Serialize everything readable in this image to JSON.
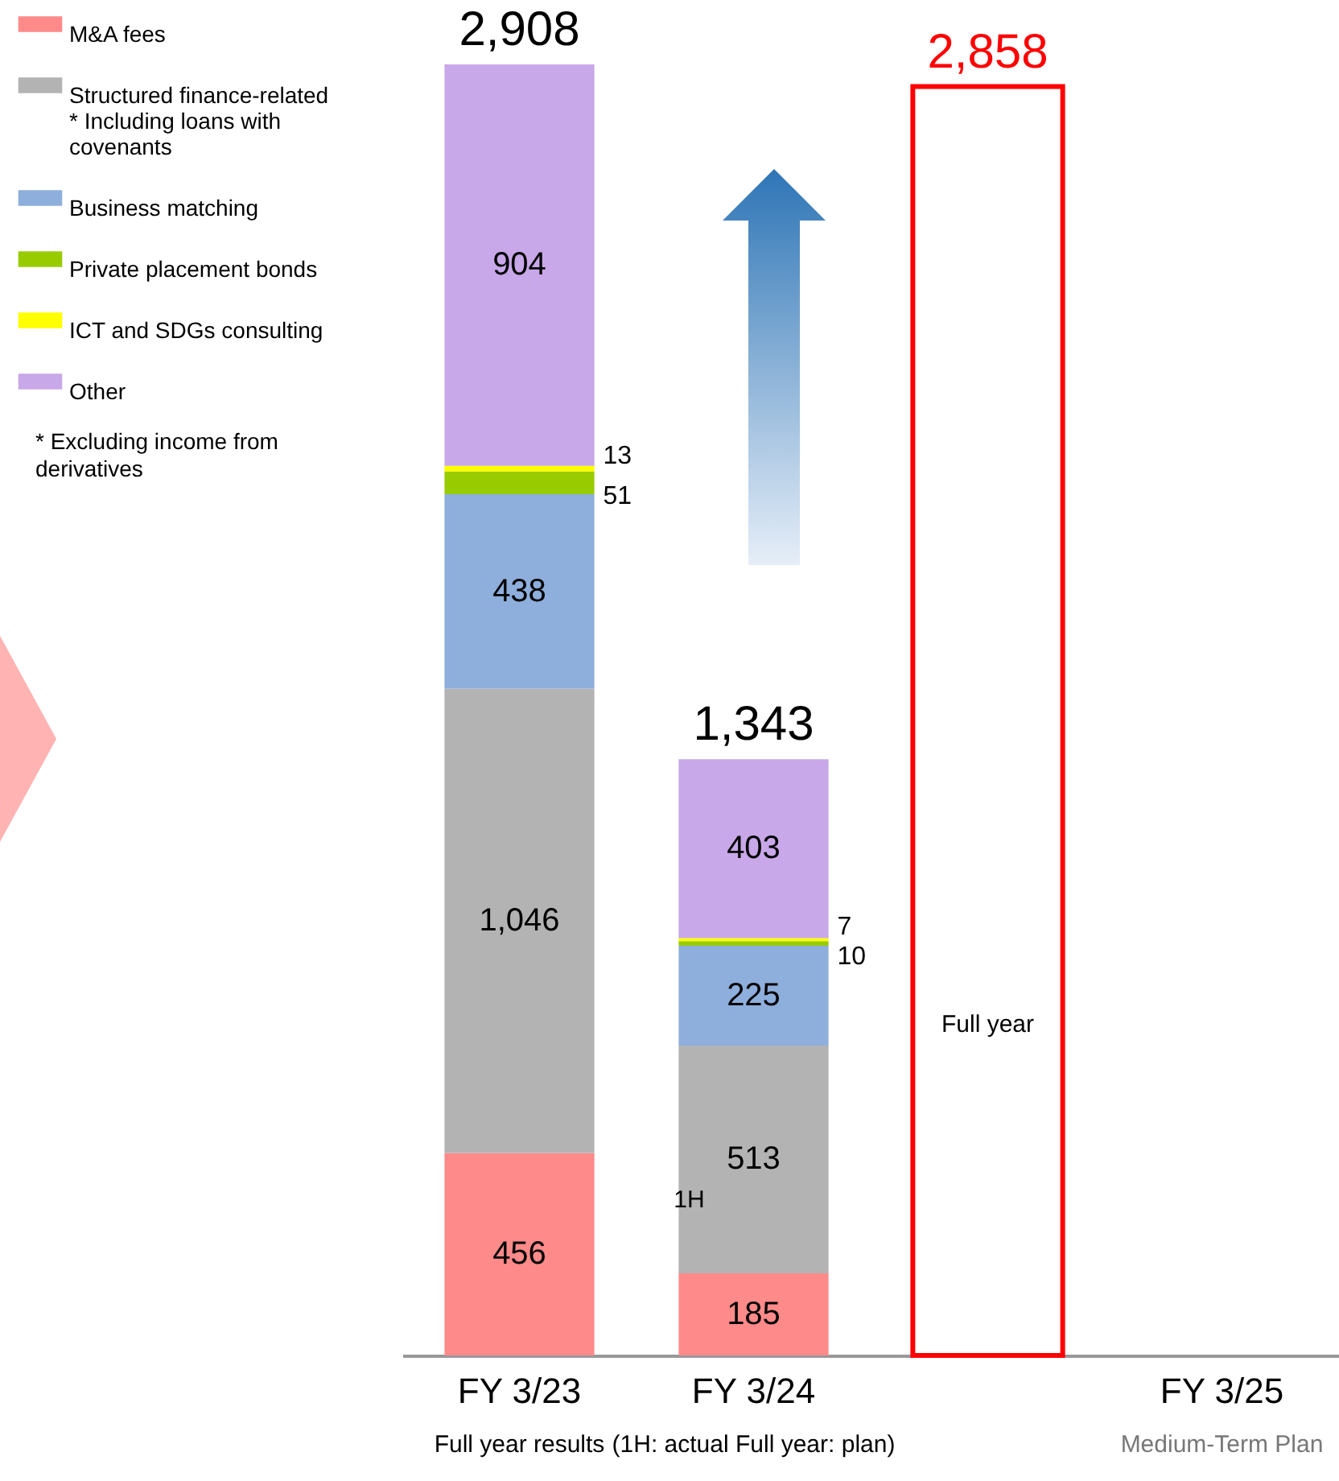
{
  "chart_data": {
    "type": "bar",
    "stacked": true,
    "categories": [
      "FY 3/23",
      "FY 3/24",
      null,
      "FY 3/25"
    ],
    "series": [
      {
        "name": "M&A fees",
        "color": "#ff8a8a",
        "values": [
          456,
          185,
          null,
          null
        ],
        "value_labels": [
          "456",
          "185",
          null,
          null
        ]
      },
      {
        "name": "Structured finance-related * Including loans with covenants",
        "color": "#b3b3b3",
        "values": [
          1046,
          513,
          null,
          null
        ],
        "value_labels": [
          "1,046",
          "513",
          null,
          null
        ]
      },
      {
        "name": "Business matching",
        "color": "#8eaedc",
        "values": [
          438,
          225,
          null,
          null
        ],
        "value_labels": [
          "438",
          "225",
          null,
          null
        ]
      },
      {
        "name": "Private placement bonds",
        "color": "#99cc00",
        "values": [
          51,
          10,
          null,
          null
        ],
        "value_labels": [
          "51",
          "10",
          null,
          null
        ]
      },
      {
        "name": "ICT and SDGs consulting",
        "color": "#ffff00",
        "values": [
          13,
          7,
          null,
          null
        ],
        "value_labels": [
          "13",
          "7",
          null,
          null
        ]
      },
      {
        "name": "Other",
        "color": "#c8a8e8",
        "values": [
          904,
          403,
          null,
          null
        ],
        "value_labels": [
          "904",
          "403",
          null,
          null
        ]
      },
      {
        "color": "#ff0000",
        "values": [
          null,
          null,
          2858,
          null
        ],
        "value_labels": [
          null,
          null,
          null,
          null
        ]
      }
    ],
    "totals": [
      "2,908",
      "1,343",
      "2,858",
      null
    ],
    "legend": "top left",
    "annotations": [
      "Full year results",
      "(1H: actual  Full year: plan)",
      "Medium-Term Plan",
      "1H",
      "Full year",
      "* Excluding income from derivatives"
    ]
  }
}
